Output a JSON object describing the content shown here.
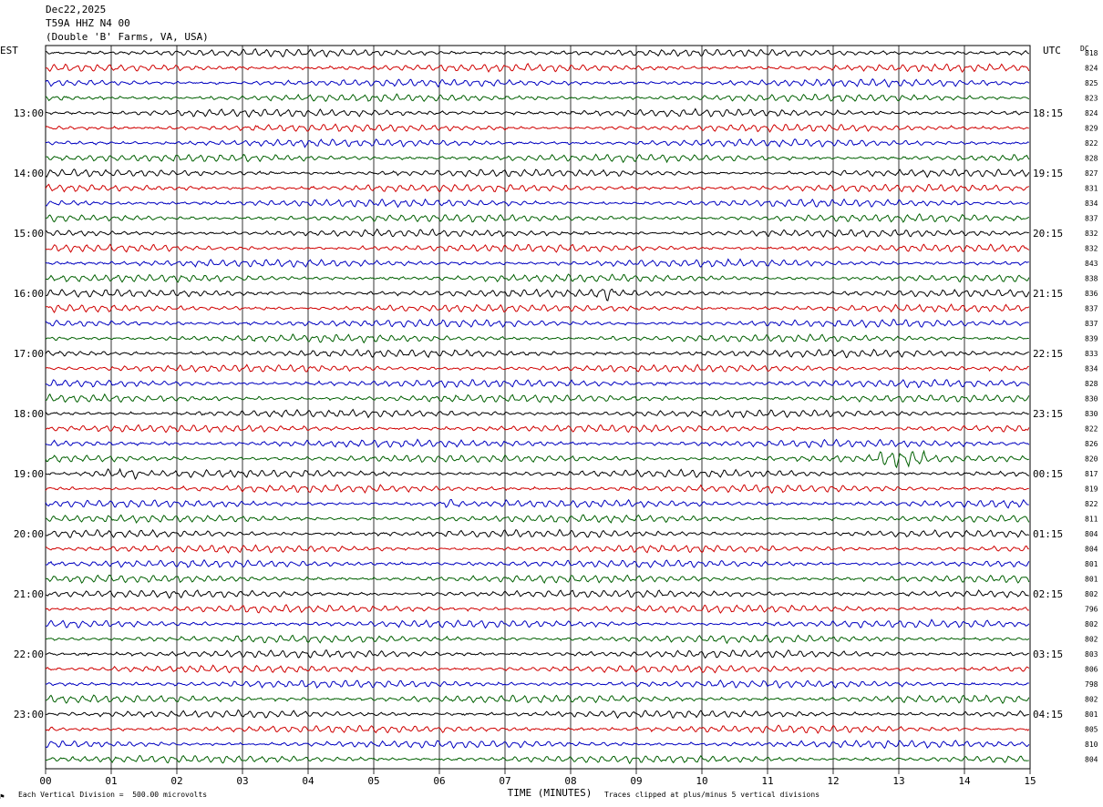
{
  "header": {
    "date": "Dec22,2025",
    "station": "T59A HHZ N4 00",
    "location": "(Double 'B' Farms, VA, USA)"
  },
  "labels": {
    "left_tz": "EST",
    "right_tz": "UTC",
    "dc": "DC",
    "scale_note": "Each Vertical Division =  500.00 microvolts",
    "clip_note": "Traces clipped at plus/minus 5 vertical divisions",
    "marker": "⚑"
  },
  "colors": {
    "trace_cycle": [
      "#000000",
      "#d00000",
      "#0000c0",
      "#006000"
    ],
    "grid": "#000000",
    "background": "#ffffff"
  },
  "chart_data": {
    "type": "line",
    "description_kind": "helicorder",
    "xlabel": "TIME (MINUTES)",
    "x_ticks": [
      "00",
      "01",
      "02",
      "03",
      "04",
      "05",
      "06",
      "07",
      "08",
      "09",
      "10",
      "11",
      "12",
      "13",
      "14",
      "15"
    ],
    "xlim": [
      0,
      15
    ],
    "left_hour_labels": [
      "13:00",
      "14:00",
      "15:00",
      "16:00",
      "17:00",
      "18:00",
      "19:00",
      "20:00",
      "21:00",
      "22:00",
      "23:00"
    ],
    "right_hour_labels": [
      "18:15",
      "19:15",
      "20:15",
      "21:15",
      "22:15",
      "23:15",
      "00:15",
      "01:15",
      "02:15",
      "03:15",
      "04:15"
    ],
    "dc_values": [
      "818",
      "824",
      "825",
      "823",
      "824",
      "829",
      "822",
      "828",
      "827",
      "831",
      "834",
      "837",
      "832",
      "832",
      "843",
      "838",
      "836",
      "837",
      "837",
      "839",
      "833",
      "834",
      "828",
      "830",
      "830",
      "822",
      "826",
      "820",
      "817",
      "819",
      "822",
      "811",
      "804",
      "804",
      "801",
      "801",
      "802",
      "796",
      "802",
      "802",
      "803",
      "806",
      "798",
      "802",
      "801",
      "805",
      "810",
      "804"
    ],
    "bursts": [
      {
        "trace": 28,
        "start_min": 0.6,
        "end_min": 1.4
      },
      {
        "trace": 30,
        "start_min": 6.0,
        "end_min": 6.3
      },
      {
        "trace": 27,
        "start_min": 12.7,
        "end_min": 13.4
      },
      {
        "trace": 16,
        "start_min": 8.4,
        "end_min": 8.7
      }
    ]
  }
}
